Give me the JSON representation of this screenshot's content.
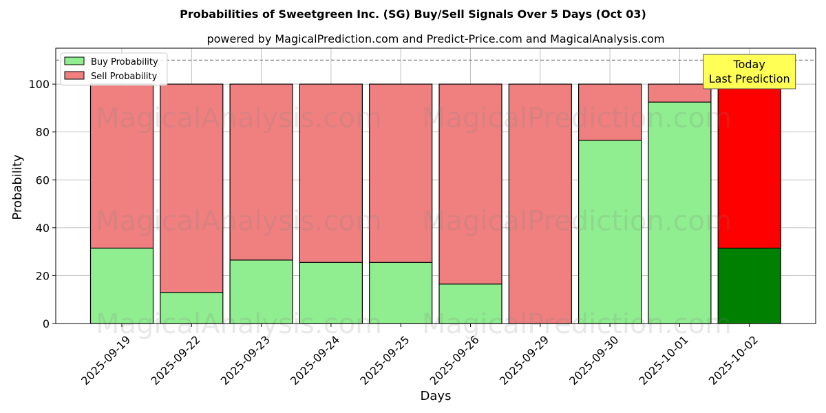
{
  "chart_data": {
    "type": "bar",
    "stacked": true,
    "title": "Probabilities of Sweetgreen Inc. (SG) Buy/Sell Signals Over 5 Days (Oct 03)",
    "subtitle": "powered by MagicalPrediction.com and Predict-Price.com and MagicalAnalysis.com",
    "xlabel": "Days",
    "ylabel": "Probability",
    "ylim": [
      0,
      115
    ],
    "yticks": [
      0,
      20,
      40,
      60,
      80,
      100
    ],
    "categories": [
      "2025-09-19",
      "2025-09-22",
      "2025-09-23",
      "2025-09-24",
      "2025-09-25",
      "2025-09-26",
      "2025-09-29",
      "2025-09-30",
      "2025-10-01",
      "2025-10-02"
    ],
    "series": [
      {
        "name": "Buy Probability",
        "color": "#90ee90",
        "highlight_color": "#008000",
        "values": [
          31.5,
          13,
          26.5,
          25.5,
          25.5,
          16.5,
          0,
          76.5,
          92.5,
          31.5
        ]
      },
      {
        "name": "Sell Probability",
        "color": "#f08080",
        "highlight_color": "#ff0000",
        "values": [
          68.5,
          87,
          73.5,
          74.5,
          74.5,
          83.5,
          100,
          23.5,
          7.5,
          68.5
        ]
      }
    ],
    "highlight_last": true,
    "reference_line": {
      "y": 110,
      "style": "dashed",
      "color": "#808080"
    },
    "annotation": {
      "line1": "Today",
      "line2": "Last Prediction",
      "bg": "#ffff55"
    },
    "legend_position": "top-left",
    "grid": true,
    "watermarks": [
      "MagicalAnalysis.com",
      "MagicalPrediction.com"
    ]
  }
}
